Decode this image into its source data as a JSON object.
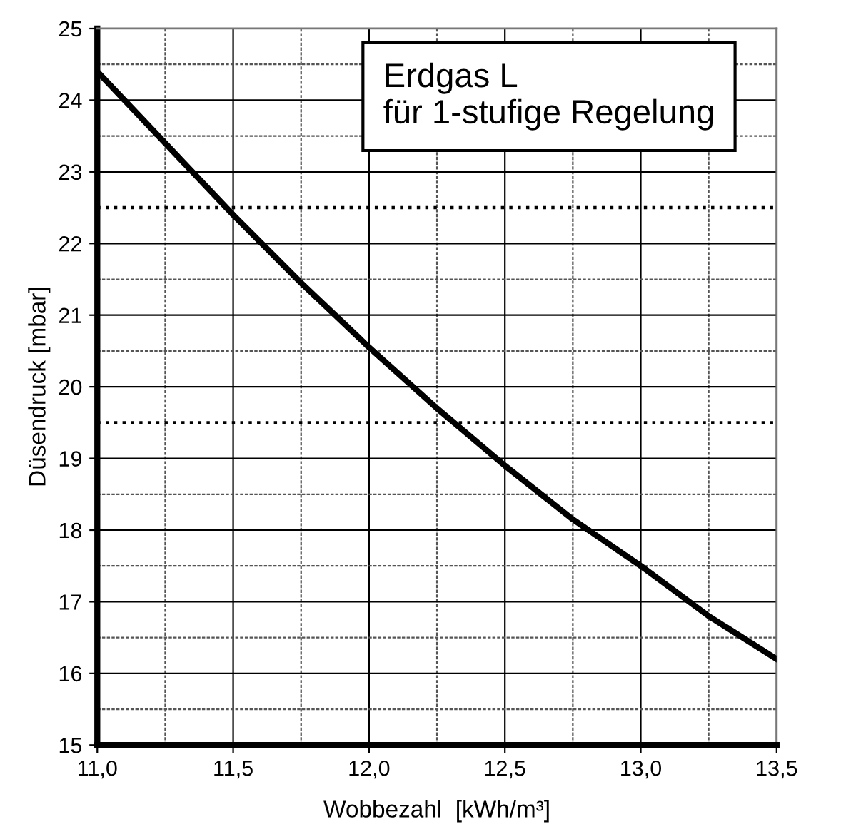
{
  "chart_data": {
    "type": "line",
    "xlabel": "Wobbezahl  [kWh/m³]",
    "ylabel": "Düsendruck [mbar]",
    "annotations": [
      "Erdgas L\nfür 1-stufige Regelung"
    ],
    "series": [
      {
        "color": "#000000",
        "x": [
          11.0,
          11.25,
          11.5,
          11.75,
          12.0,
          12.25,
          12.5,
          12.75,
          13.0,
          13.25,
          13.5
        ],
        "values": [
          24.4,
          23.4,
          22.4,
          21.45,
          20.55,
          19.7,
          18.9,
          18.15,
          17.5,
          16.8,
          16.2
        ]
      }
    ],
    "xlim": [
      11.0,
      13.5
    ],
    "ylim": [
      15,
      25
    ],
    "xticks": [
      {
        "value": 11.0,
        "label": "11,0"
      },
      {
        "value": 11.25,
        "label": null
      },
      {
        "value": 11.5,
        "label": "11,5"
      },
      {
        "value": 11.75,
        "label": null
      },
      {
        "value": 12.0,
        "label": "12,0"
      },
      {
        "value": 12.25,
        "label": null
      },
      {
        "value": 12.5,
        "label": "12,5"
      },
      {
        "value": 12.75,
        "label": null
      },
      {
        "value": 13.0,
        "label": "13,0"
      },
      {
        "value": 13.25,
        "label": null
      },
      {
        "value": 13.5,
        "label": "13,5"
      }
    ],
    "yticks": [
      15,
      {
        "value": 15.5,
        "label": null
      },
      16,
      {
        "value": 16.5,
        "label": null
      },
      17,
      {
        "value": 17.5,
        "label": null
      },
      18,
      {
        "value": 18.5,
        "label": null
      },
      19,
      20,
      {
        "value": 20.5,
        "label": null
      },
      21,
      {
        "value": 21.5,
        "label": null
      },
      22,
      23,
      {
        "value": 23.5,
        "label": null
      },
      24,
      {
        "value": 24.5,
        "label": null
      },
      25
    ],
    "ref_lines": [
      {
        "axis": "y",
        "value": 22.5,
        "color": "#000000",
        "line_style": "dotted"
      },
      {
        "axis": "y",
        "value": 19.5,
        "color": "#000000",
        "line_style": "dotted"
      }
    ],
    "grid": true,
    "legend": false,
    "marker": "none",
    "line_style": "solid"
  }
}
